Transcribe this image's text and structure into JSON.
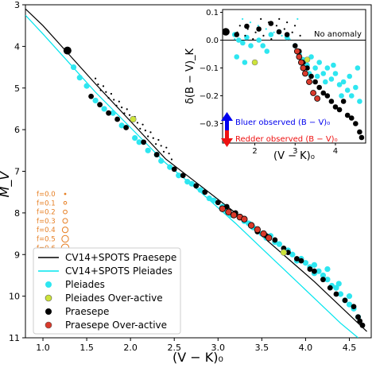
{
  "chart_data": {
    "type": "scatter",
    "xlabel": "(V − K)₀",
    "ylabel": "M_V",
    "xlim": [
      0.8,
      4.75
    ],
    "ylim": [
      11,
      3
    ],
    "xticks": [
      "1.0",
      "1.5",
      "2.0",
      "2.5",
      "3.0",
      "3.5",
      "4.0",
      "4.5"
    ],
    "yticks": [
      "3",
      "4",
      "5",
      "6",
      "7",
      "8",
      "9",
      "10",
      "11"
    ],
    "series": [
      {
        "name": "CV14+SPOTS Praesepe",
        "type": "line",
        "color": "#000000",
        "x": [
          0.8,
          1.0,
          1.3,
          1.6,
          2.0,
          2.4,
          2.8,
          3.2,
          3.5,
          3.8,
          4.1,
          4.4,
          4.7
        ],
        "y": [
          3.1,
          3.5,
          4.2,
          4.9,
          5.8,
          6.7,
          7.35,
          8.0,
          8.55,
          9.1,
          9.65,
          10.25,
          10.85
        ]
      },
      {
        "name": "CV14+SPOTS Pleiades",
        "type": "line",
        "color": "#00e5ee",
        "x": [
          0.8,
          1.0,
          1.3,
          1.6,
          2.0,
          2.4,
          2.8,
          3.2,
          3.5,
          3.8,
          4.1,
          4.4,
          4.6
        ],
        "y": [
          3.25,
          3.7,
          4.4,
          5.1,
          5.95,
          6.8,
          7.5,
          8.25,
          8.85,
          9.45,
          10.05,
          10.65,
          11.0
        ]
      },
      {
        "name": "Pleiades",
        "color": "#2ee6f0",
        "points": [
          [
            1.35,
            4.5
          ],
          [
            1.42,
            4.75
          ],
          [
            1.5,
            4.95
          ],
          [
            1.6,
            5.3
          ],
          [
            1.7,
            5.5
          ],
          [
            1.8,
            5.6
          ],
          [
            1.9,
            5.9
          ],
          [
            2.05,
            6.2
          ],
          [
            2.1,
            6.3
          ],
          [
            2.2,
            6.5
          ],
          [
            2.3,
            6.6
          ],
          [
            2.35,
            6.75
          ],
          [
            2.45,
            6.9
          ],
          [
            2.55,
            7.1
          ],
          [
            2.65,
            7.25
          ],
          [
            2.7,
            7.3
          ],
          [
            2.8,
            7.45
          ],
          [
            2.9,
            7.65
          ],
          [
            2.95,
            7.7
          ],
          [
            3.05,
            7.85
          ],
          [
            3.1,
            7.95
          ],
          [
            3.15,
            8.05
          ],
          [
            3.25,
            8.1
          ],
          [
            3.3,
            8.2
          ],
          [
            3.4,
            8.35
          ],
          [
            3.5,
            8.5
          ],
          [
            3.55,
            8.6
          ],
          [
            3.65,
            8.7
          ],
          [
            3.7,
            8.75
          ],
          [
            3.8,
            8.9
          ],
          [
            3.85,
            9.0
          ],
          [
            3.95,
            9.1
          ],
          [
            4.0,
            9.2
          ],
          [
            4.05,
            9.3
          ],
          [
            4.1,
            9.25
          ],
          [
            4.15,
            9.4
          ],
          [
            4.2,
            9.5
          ],
          [
            4.25,
            9.6
          ],
          [
            4.3,
            9.75
          ],
          [
            4.35,
            9.8
          ],
          [
            4.4,
            9.95
          ],
          [
            4.45,
            10.1
          ],
          [
            4.5,
            10.2
          ],
          [
            4.55,
            10.3
          ],
          [
            4.6,
            10.5
          ],
          [
            4.25,
            9.35
          ],
          [
            4.38,
            9.7
          ],
          [
            4.5,
            10.0
          ],
          [
            3.6,
            8.55
          ],
          [
            3.35,
            8.25
          ],
          [
            4.1,
            9.45
          ],
          [
            3.9,
            9.15
          ]
        ]
      },
      {
        "name": "Pleiades Over-active",
        "color": "#cde33a",
        "points": [
          [
            2.03,
            5.75
          ],
          [
            3.75,
            8.95
          ]
        ]
      },
      {
        "name": "Praesepe",
        "color": "#000000",
        "points": [
          [
            1.28,
            4.1
          ],
          [
            1.55,
            5.2
          ],
          [
            1.65,
            5.4
          ],
          [
            1.75,
            5.6
          ],
          [
            1.85,
            5.75
          ],
          [
            1.95,
            5.95
          ],
          [
            2.15,
            6.3
          ],
          [
            2.3,
            6.6
          ],
          [
            2.5,
            6.95
          ],
          [
            2.6,
            7.1
          ],
          [
            2.75,
            7.35
          ],
          [
            2.85,
            7.5
          ],
          [
            3.0,
            7.75
          ],
          [
            3.1,
            7.85
          ],
          [
            3.2,
            8.0
          ],
          [
            3.3,
            8.15
          ],
          [
            3.45,
            8.45
          ],
          [
            3.55,
            8.55
          ],
          [
            3.65,
            8.65
          ],
          [
            3.75,
            8.85
          ],
          [
            3.8,
            8.95
          ],
          [
            3.9,
            9.1
          ],
          [
            3.95,
            9.15
          ],
          [
            4.05,
            9.35
          ],
          [
            4.1,
            9.4
          ],
          [
            4.2,
            9.6
          ],
          [
            4.28,
            9.8
          ],
          [
            4.35,
            9.95
          ],
          [
            4.45,
            10.1
          ],
          [
            4.55,
            10.25
          ],
          [
            4.6,
            10.5
          ],
          [
            4.62,
            10.6
          ],
          [
            4.65,
            10.7
          ]
        ]
      },
      {
        "name": "Praesepe Over-active",
        "color": "#d93a2b",
        "points": [
          [
            3.05,
            7.9
          ],
          [
            3.12,
            7.98
          ],
          [
            3.18,
            8.05
          ],
          [
            3.25,
            8.1
          ],
          [
            3.3,
            8.15
          ],
          [
            3.38,
            8.3
          ],
          [
            3.45,
            8.4
          ],
          [
            3.52,
            8.5
          ],
          [
            3.58,
            8.6
          ]
        ]
      }
    ],
    "legend": {
      "placement": "lower-left",
      "entries": [
        "CV14+SPOTS Praesepe",
        "CV14+SPOTS Pleiades",
        "Pleiades",
        "Pleiades Over-active",
        "Praesepe",
        "Praesepe Over-active"
      ]
    },
    "f_key": {
      "labels": [
        "f=0.0",
        "f=0.1",
        "f=0.2",
        "f=0.3",
        "f=0.4",
        "f=0.5",
        "f=0.6"
      ],
      "values": [
        0.0,
        0.1,
        0.2,
        0.3,
        0.4,
        0.5,
        0.6
      ]
    },
    "inset": {
      "xlabel": "(V − K)₀",
      "ylabel": "δ(B − V)_K",
      "xlim": [
        1.2,
        4.75
      ],
      "ylim": [
        -0.37,
        0.11
      ],
      "xticks": [
        "2",
        "3",
        "4"
      ],
      "yticks": [
        "0.1",
        "0.0",
        "−0.1",
        "−0.2",
        "−0.3"
      ],
      "annotation": "No anomaly",
      "bluer_text": "Bluer observed (B − V)₀",
      "redder_text": "Redder observed (B − V)₀",
      "series": [
        {
          "name": "Pleiades",
          "points": [
            [
              1.5,
              0.02
            ],
            [
              1.6,
              0.0
            ],
            [
              1.7,
              -0.01
            ],
            [
              1.8,
              0.01
            ],
            [
              1.9,
              -0.02
            ],
            [
              2.1,
              0.0
            ],
            [
              2.2,
              -0.02
            ],
            [
              2.4,
              0.02
            ],
            [
              2.6,
              0.03
            ],
            [
              2.8,
              0.01
            ],
            [
              3.0,
              -0.02
            ],
            [
              3.1,
              -0.05
            ],
            [
              3.2,
              -0.07
            ],
            [
              3.3,
              -0.09
            ],
            [
              3.4,
              -0.06
            ],
            [
              3.5,
              -0.1
            ],
            [
              3.6,
              -0.08
            ],
            [
              3.7,
              -0.12
            ],
            [
              3.8,
              -0.1
            ],
            [
              3.9,
              -0.14
            ],
            [
              4.0,
              -0.12
            ],
            [
              4.1,
              -0.16
            ],
            [
              4.2,
              -0.15
            ],
            [
              4.3,
              -0.18
            ],
            [
              4.4,
              -0.2
            ],
            [
              4.5,
              -0.17
            ],
            [
              4.6,
              -0.22
            ],
            [
              3.55,
              -0.13
            ],
            [
              3.75,
              -0.15
            ],
            [
              3.95,
              -0.09
            ],
            [
              4.15,
              -0.2
            ],
            [
              4.35,
              -0.13
            ],
            [
              4.55,
              -0.1
            ],
            [
              3.35,
              -0.12
            ],
            [
              1.55,
              -0.06
            ],
            [
              1.75,
              -0.08
            ],
            [
              2.3,
              -0.04
            ]
          ]
        },
        {
          "name": "Pleiades Over-active",
          "points": [
            [
              2.0,
              -0.08
            ],
            [
              3.3,
              -0.07
            ]
          ]
        },
        {
          "name": "Praesepe",
          "points": [
            [
              1.28,
              0.03
            ],
            [
              1.55,
              0.02
            ],
            [
              1.8,
              0.05
            ],
            [
              2.1,
              0.04
            ],
            [
              2.4,
              0.06
            ],
            [
              2.6,
              0.03
            ],
            [
              2.8,
              0.02
            ],
            [
              3.0,
              -0.02
            ],
            [
              3.1,
              -0.04
            ],
            [
              3.2,
              -0.08
            ],
            [
              3.3,
              -0.1
            ],
            [
              3.4,
              -0.13
            ],
            [
              3.5,
              -0.15
            ],
            [
              3.6,
              -0.17
            ],
            [
              3.7,
              -0.19
            ],
            [
              3.8,
              -0.2
            ],
            [
              3.9,
              -0.22
            ],
            [
              4.0,
              -0.24
            ],
            [
              4.1,
              -0.25
            ],
            [
              4.2,
              -0.22
            ],
            [
              4.3,
              -0.27
            ],
            [
              4.4,
              -0.28
            ],
            [
              4.5,
              -0.3
            ],
            [
              4.6,
              -0.33
            ],
            [
              4.65,
              -0.35
            ]
          ]
        },
        {
          "name": "Praesepe Over-active",
          "points": [
            [
              3.05,
              -0.04
            ],
            [
              3.1,
              -0.06
            ],
            [
              3.15,
              -0.08
            ],
            [
              3.2,
              -0.1
            ],
            [
              3.25,
              -0.12
            ],
            [
              3.35,
              -0.15
            ],
            [
              3.45,
              -0.19
            ],
            [
              3.55,
              -0.21
            ]
          ]
        }
      ]
    }
  }
}
